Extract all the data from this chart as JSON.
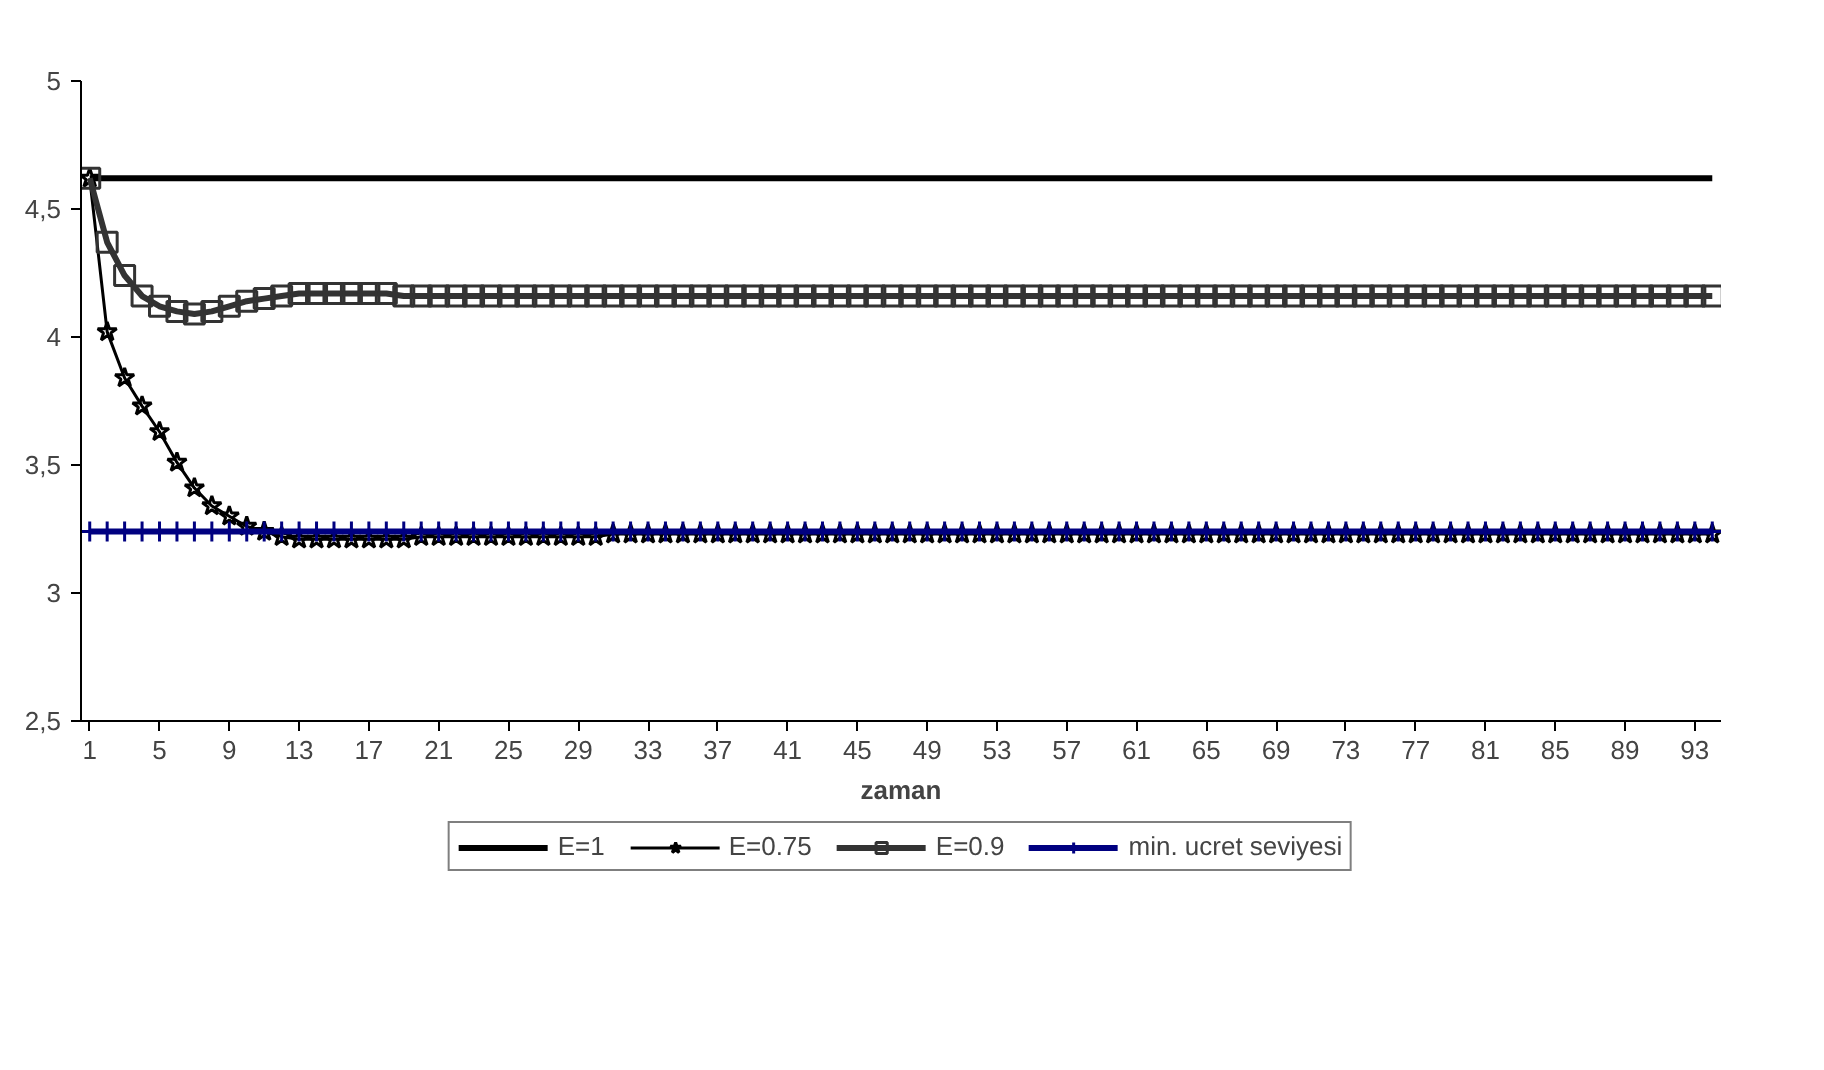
{
  "chart_data": {
    "type": "line",
    "xlabel": "zaman",
    "categories": [
      "1",
      null,
      null,
      null,
      "5",
      null,
      null,
      null,
      "9",
      null,
      null,
      null,
      "13",
      null,
      null,
      null,
      "17",
      null,
      null,
      null,
      "21",
      null,
      null,
      null,
      "25",
      null,
      null,
      null,
      "29",
      null,
      null,
      null,
      "33",
      null,
      null,
      null,
      "37",
      null,
      null,
      null,
      "41",
      null,
      null,
      null,
      "45",
      null,
      null,
      null,
      "49",
      null,
      null,
      null,
      "53",
      null,
      null,
      null,
      "57",
      null,
      null,
      null,
      "61",
      null,
      null,
      null,
      "65",
      null,
      null,
      null,
      "69",
      null,
      null,
      null,
      "73",
      null,
      null,
      null,
      "77",
      null,
      null,
      null,
      "81",
      null,
      null,
      null,
      "85",
      null,
      null,
      null,
      "89",
      null,
      null,
      null,
      "93",
      null
    ],
    "ylim": [
      2.5,
      5
    ],
    "yticks": [
      {
        "value": 2.5,
        "label": "2,5"
      },
      3,
      {
        "value": 3.5,
        "label": "3,5"
      },
      4,
      {
        "value": 4.5,
        "label": "4,5"
      },
      5
    ],
    "grid": false,
    "legend": "bottom",
    "series": [
      {
        "name": "E=1",
        "color": "#000000",
        "marker": "none",
        "values": [
          4.62,
          4.62,
          4.62,
          4.62,
          4.62,
          4.62,
          4.62,
          4.62,
          4.62,
          4.62,
          4.62,
          4.62,
          4.62,
          4.62,
          4.62,
          4.62,
          4.62,
          4.62,
          4.62,
          4.62,
          4.62,
          4.62,
          4.62,
          4.62,
          4.62,
          4.62,
          4.62,
          4.62,
          4.62,
          4.62,
          4.62,
          4.62,
          4.62,
          4.62,
          4.62,
          4.62,
          4.62,
          4.62,
          4.62,
          4.62,
          4.62,
          4.62,
          4.62,
          4.62,
          4.62,
          4.62,
          4.62,
          4.62,
          4.62,
          4.62,
          4.62,
          4.62,
          4.62,
          4.62,
          4.62,
          4.62,
          4.62,
          4.62,
          4.62,
          4.62,
          4.62,
          4.62,
          4.62,
          4.62,
          4.62,
          4.62,
          4.62,
          4.62,
          4.62,
          4.62,
          4.62,
          4.62,
          4.62,
          4.62,
          4.62,
          4.62,
          4.62,
          4.62,
          4.62,
          4.62,
          4.62,
          4.62,
          4.62,
          4.62,
          4.62,
          4.62,
          4.62,
          4.62,
          4.62,
          4.62,
          4.62,
          4.62,
          4.62,
          4.62
        ]
      },
      {
        "name": "E=0.75",
        "color": "#000000",
        "marker": "star",
        "values": [
          4.62,
          4.02,
          3.84,
          3.73,
          3.63,
          3.51,
          3.41,
          3.34,
          3.3,
          3.26,
          3.24,
          3.22,
          3.21,
          3.21,
          3.21,
          3.21,
          3.21,
          3.21,
          3.21,
          3.22,
          3.22,
          3.22,
          3.22,
          3.22,
          3.22,
          3.22,
          3.22,
          3.22,
          3.22,
          3.22,
          3.23,
          3.23,
          3.23,
          3.23,
          3.23,
          3.23,
          3.23,
          3.23,
          3.23,
          3.23,
          3.23,
          3.23,
          3.23,
          3.23,
          3.23,
          3.23,
          3.23,
          3.23,
          3.23,
          3.23,
          3.23,
          3.23,
          3.23,
          3.23,
          3.23,
          3.23,
          3.23,
          3.23,
          3.23,
          3.23,
          3.23,
          3.23,
          3.23,
          3.23,
          3.23,
          3.23,
          3.23,
          3.23,
          3.23,
          3.23,
          3.23,
          3.23,
          3.23,
          3.23,
          3.23,
          3.23,
          3.23,
          3.23,
          3.23,
          3.23,
          3.23,
          3.23,
          3.23,
          3.23,
          3.23,
          3.23,
          3.23,
          3.23,
          3.23,
          3.23,
          3.23,
          3.23,
          3.23,
          3.23
        ]
      },
      {
        "name": "E=0.9",
        "color": "#333333",
        "marker": "square",
        "values": [
          4.62,
          4.37,
          4.24,
          4.16,
          4.12,
          4.1,
          4.09,
          4.1,
          4.12,
          4.14,
          4.15,
          4.16,
          4.17,
          4.17,
          4.17,
          4.17,
          4.17,
          4.17,
          4.16,
          4.16,
          4.16,
          4.16,
          4.16,
          4.16,
          4.16,
          4.16,
          4.16,
          4.16,
          4.16,
          4.16,
          4.16,
          4.16,
          4.16,
          4.16,
          4.16,
          4.16,
          4.16,
          4.16,
          4.16,
          4.16,
          4.16,
          4.16,
          4.16,
          4.16,
          4.16,
          4.16,
          4.16,
          4.16,
          4.16,
          4.16,
          4.16,
          4.16,
          4.16,
          4.16,
          4.16,
          4.16,
          4.16,
          4.16,
          4.16,
          4.16,
          4.16,
          4.16,
          4.16,
          4.16,
          4.16,
          4.16,
          4.16,
          4.16,
          4.16,
          4.16,
          4.16,
          4.16,
          4.16,
          4.16,
          4.16,
          4.16,
          4.16,
          4.16,
          4.16,
          4.16,
          4.16,
          4.16,
          4.16,
          4.16,
          4.16,
          4.16,
          4.16,
          4.16,
          4.16,
          4.16,
          4.16,
          4.16,
          4.16,
          4.16
        ]
      },
      {
        "name": "min. ucret seviyesi",
        "color": "#000080",
        "marker": "cross",
        "values": [
          3.24,
          3.24,
          3.24,
          3.24,
          3.24,
          3.24,
          3.24,
          3.24,
          3.24,
          3.24,
          3.24,
          3.24,
          3.24,
          3.24,
          3.24,
          3.24,
          3.24,
          3.24,
          3.24,
          3.24,
          3.24,
          3.24,
          3.24,
          3.24,
          3.24,
          3.24,
          3.24,
          3.24,
          3.24,
          3.24,
          3.24,
          3.24,
          3.24,
          3.24,
          3.24,
          3.24,
          3.24,
          3.24,
          3.24,
          3.24,
          3.24,
          3.24,
          3.24,
          3.24,
          3.24,
          3.24,
          3.24,
          3.24,
          3.24,
          3.24,
          3.24,
          3.24,
          3.24,
          3.24,
          3.24,
          3.24,
          3.24,
          3.24,
          3.24,
          3.24,
          3.24,
          3.24,
          3.24,
          3.24,
          3.24,
          3.24,
          3.24,
          3.24,
          3.24,
          3.24,
          3.24,
          3.24,
          3.24,
          3.24,
          3.24,
          3.24,
          3.24,
          3.24,
          3.24,
          3.24,
          3.24,
          3.24,
          3.24,
          3.24,
          3.24,
          3.24,
          3.24,
          3.24,
          3.24,
          3.24,
          3.24,
          3.24,
          3.24,
          3.24
        ]
      }
    ]
  }
}
